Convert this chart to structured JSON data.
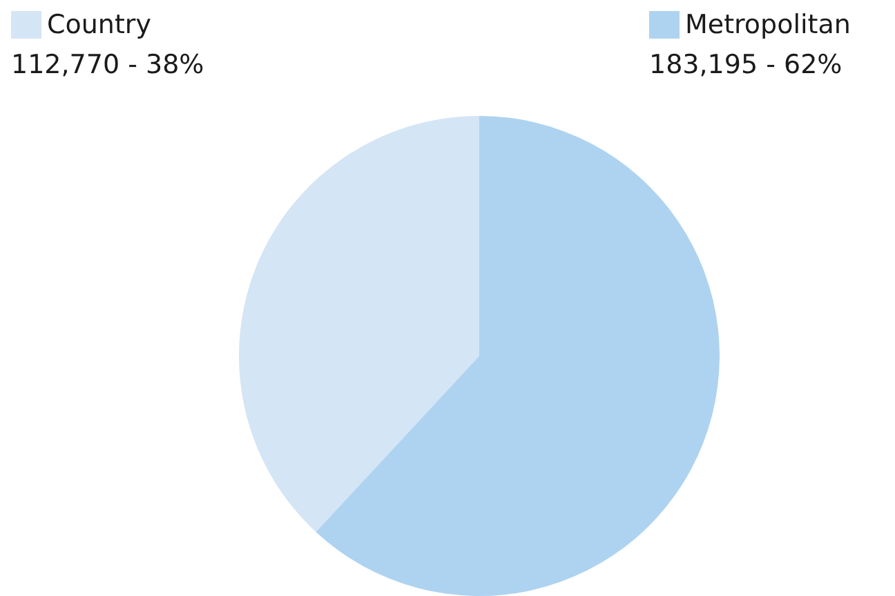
{
  "chart_data": {
    "type": "pie",
    "categories": [
      "Country",
      "Metropolitan"
    ],
    "values": [
      112770,
      183195
    ],
    "colors": [
      "#d4e5f5",
      "#aed3f0"
    ],
    "value_labels": [
      "112,770 - 38%",
      "183,195 - 62%"
    ],
    "legend": "top"
  }
}
